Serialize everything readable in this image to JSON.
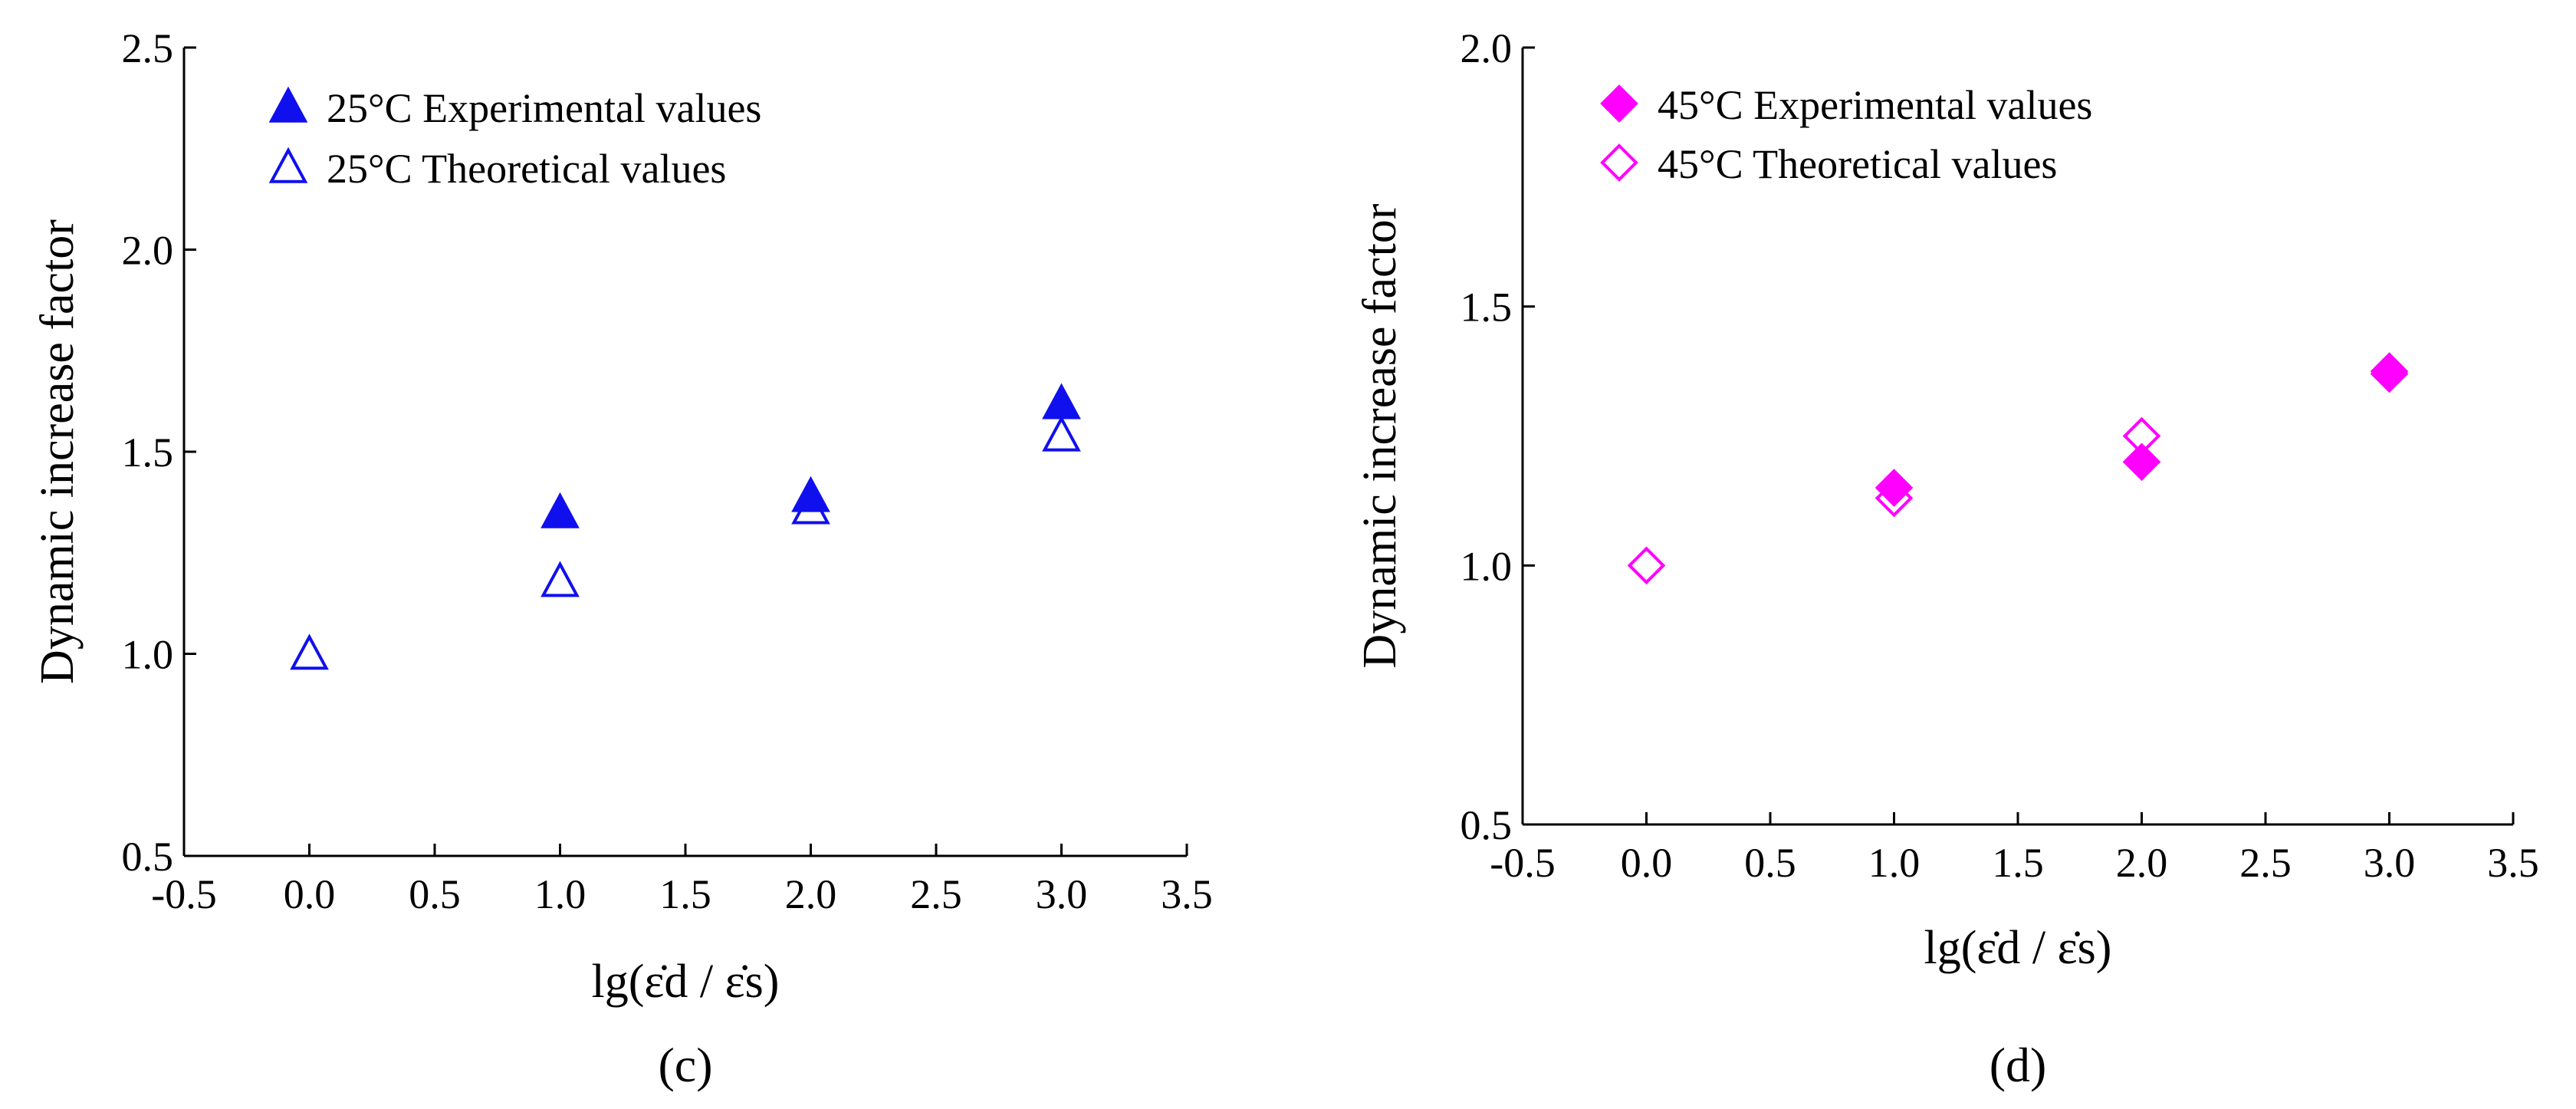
{
  "chart_data": [
    {
      "panel": "c",
      "panel_label": "(c)",
      "type": "scatter",
      "xlabel": "lg(ε̇d / ε̇s)",
      "ylabel": "Dynamic increase factor",
      "xlim": [
        -0.5,
        3.5
      ],
      "ylim": [
        0.5,
        2.5
      ],
      "xticks": [
        "-0.5",
        "0.0",
        "0.5",
        "1.0",
        "1.5",
        "2.0",
        "2.5",
        "3.0",
        "3.5"
      ],
      "yticks": [
        "0.5",
        "1.0",
        "1.5",
        "2.0",
        "2.5"
      ],
      "legend_position": "top-left",
      "series": [
        {
          "name": "25°C Experimental values",
          "marker": "triangle-filled",
          "color": "#1010ee",
          "x": [
            1.0,
            2.0,
            3.0
          ],
          "y": [
            1.35,
            1.39,
            1.62
          ]
        },
        {
          "name": "25°C Theoretical values",
          "marker": "triangle-open",
          "color": "#1010ee",
          "x": [
            0.0,
            1.0,
            2.0,
            3.0
          ],
          "y": [
            1.0,
            1.18,
            1.36,
            1.54
          ]
        }
      ]
    },
    {
      "panel": "d",
      "panel_label": "(d)",
      "type": "scatter",
      "xlabel": "lg(ε̇d / ε̇s)",
      "ylabel": "Dynamic increase factor",
      "xlim": [
        -0.5,
        3.5
      ],
      "ylim": [
        0.5,
        2.0
      ],
      "xticks": [
        "-0.5",
        "0.0",
        "0.5",
        "1.0",
        "1.5",
        "2.0",
        "2.5",
        "3.0",
        "3.5"
      ],
      "yticks": [
        "0.5",
        "1.0",
        "1.5",
        "2.0"
      ],
      "legend_position": "top-left",
      "series": [
        {
          "name": "45°C Experimental values",
          "marker": "diamond-filled",
          "color": "#ff00ff",
          "x": [
            1.0,
            2.0,
            3.0
          ],
          "y": [
            1.15,
            1.2,
            1.37
          ]
        },
        {
          "name": "45°C Theoretical values",
          "marker": "diamond-open",
          "color": "#ff00ff",
          "x": [
            0.0,
            1.0,
            2.0,
            3.0
          ],
          "y": [
            1.0,
            1.13,
            1.25,
            1.375
          ]
        }
      ]
    }
  ]
}
